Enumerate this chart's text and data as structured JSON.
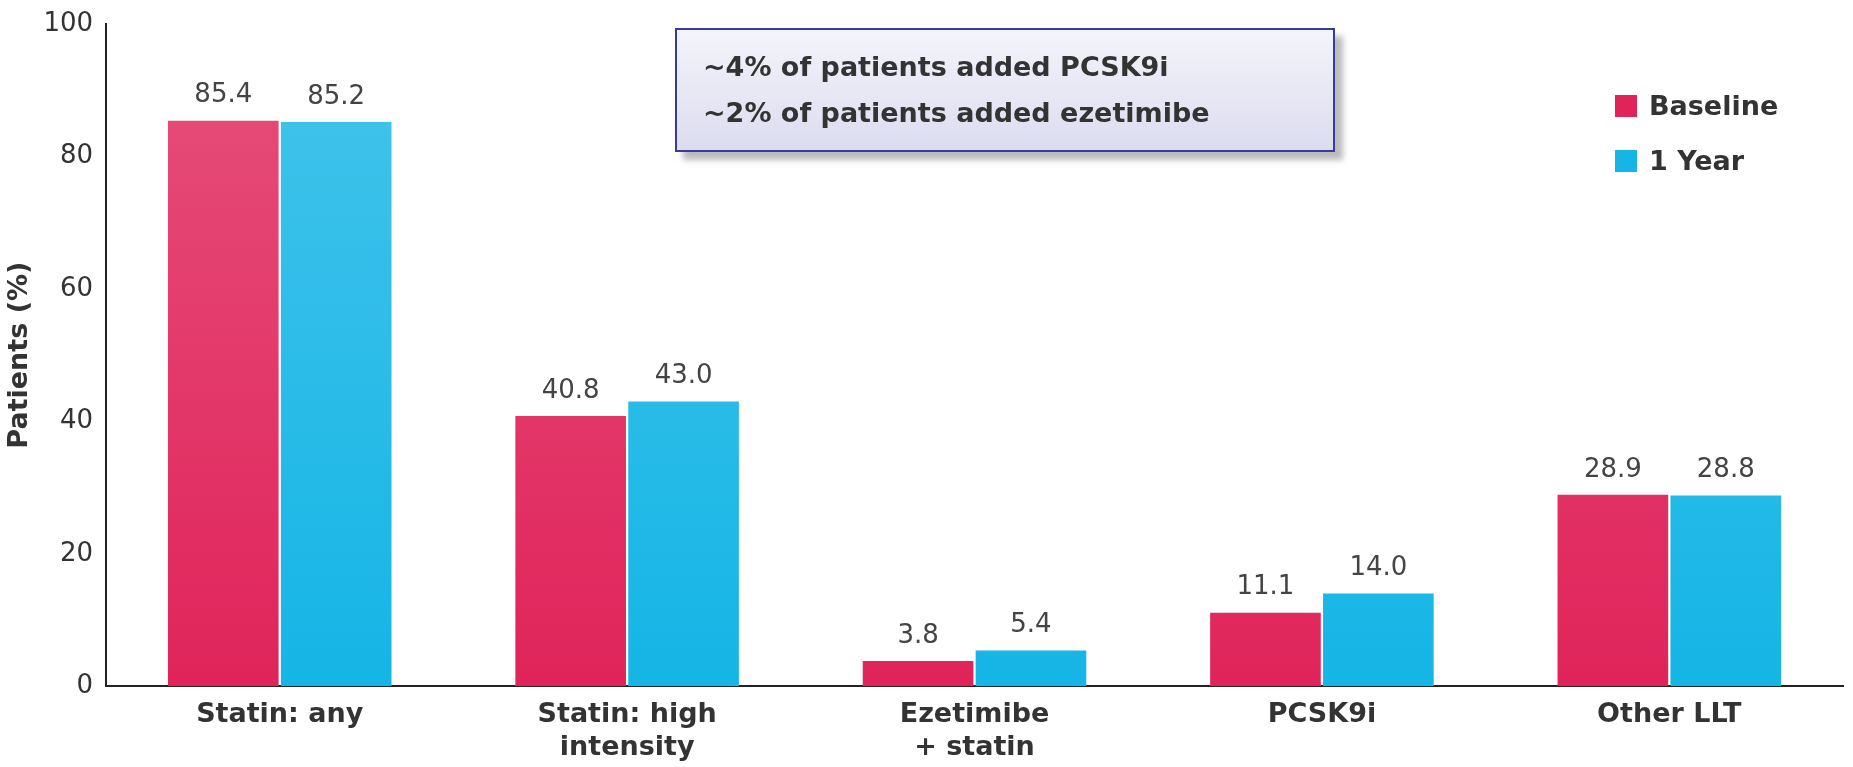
{
  "chart_data": {
    "type": "bar",
    "ylabel": "Patients (%)",
    "categories": [
      "Statin: any",
      "Statin: high\nintensity",
      "Ezetimibe\n+ statin",
      "PCSK9i",
      "Other LLT"
    ],
    "series": [
      {
        "name": "Baseline",
        "color": "#e0245a",
        "values": [
          85.4,
          40.8,
          3.8,
          11.1,
          28.9
        ],
        "value_labels": [
          "85.4",
          "40.8",
          "3.8",
          "11.1",
          "28.9"
        ]
      },
      {
        "name": "1 Year",
        "color": "#15b5e6",
        "values": [
          85.2,
          43.0,
          5.4,
          14.0,
          28.8
        ],
        "value_labels": [
          "85.2",
          "43.0",
          "5.4",
          "14.0",
          "28.8"
        ]
      }
    ],
    "ylim": [
      0,
      100
    ],
    "yticks": [
      0,
      20,
      40,
      60,
      80,
      100
    ],
    "grid": false,
    "legend": "top right",
    "annotations": [
      "~4% of patients added PCSK9i\n~2% of patients added ezetimibe"
    ]
  }
}
